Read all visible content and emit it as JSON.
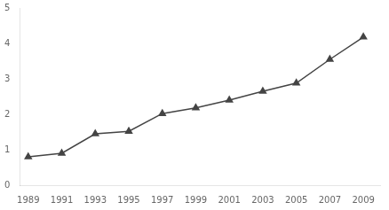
{
  "chart_data": {
    "type": "line",
    "x": [
      1989,
      1991,
      1993,
      1995,
      1997,
      1999,
      2001,
      2003,
      2005,
      2007,
      2009
    ],
    "values": [
      0.8,
      0.9,
      1.45,
      1.52,
      2.02,
      2.18,
      2.4,
      2.65,
      2.88,
      3.55,
      4.18
    ],
    "xlim": [
      1988.5,
      2010.0
    ],
    "ylim": [
      0,
      5
    ],
    "xticks": [
      1989,
      1991,
      1993,
      1995,
      1997,
      1999,
      2001,
      2003,
      2005,
      2007,
      2009
    ],
    "yticks": [
      0,
      1,
      2,
      3,
      4,
      5
    ],
    "color": "#444444",
    "marker": "triangle",
    "grid": false
  }
}
